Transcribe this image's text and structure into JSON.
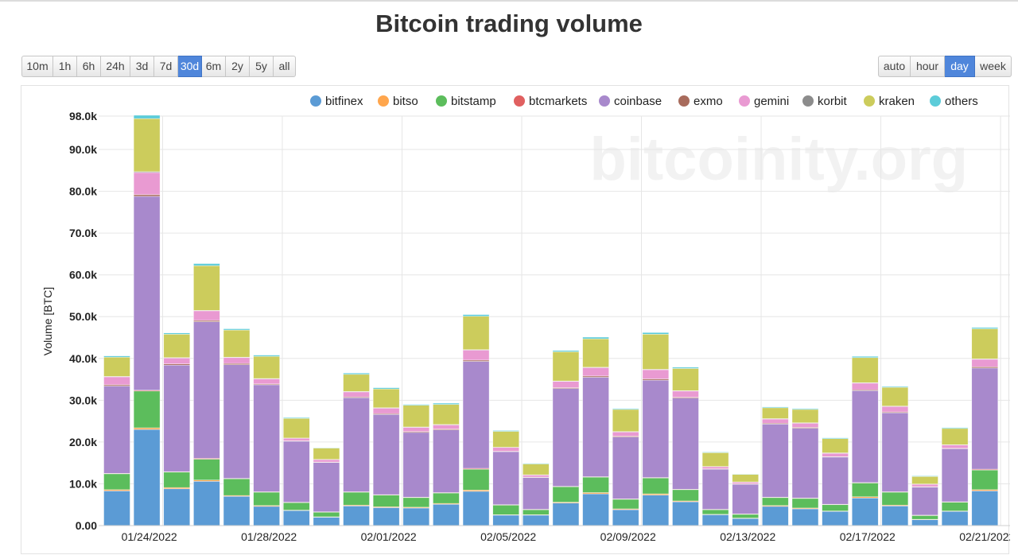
{
  "title": "Bitcoin trading volume",
  "range_buttons": [
    {
      "label": "10m",
      "active": false
    },
    {
      "label": "1h",
      "active": false
    },
    {
      "label": "6h",
      "active": false
    },
    {
      "label": "24h",
      "active": false
    },
    {
      "label": "3d",
      "active": false
    },
    {
      "label": "7d",
      "active": false
    },
    {
      "label": "30d",
      "active": true
    },
    {
      "label": "6m",
      "active": false
    },
    {
      "label": "2y",
      "active": false
    },
    {
      "label": "5y",
      "active": false
    },
    {
      "label": "all",
      "active": false
    }
  ],
  "unit_buttons": [
    {
      "label": "auto",
      "active": false
    },
    {
      "label": "hour",
      "active": false
    },
    {
      "label": "day",
      "active": true
    },
    {
      "label": "week",
      "active": false
    }
  ],
  "watermark": "bitcoinity.org",
  "colors": {
    "accent": "#4f86db",
    "grid": "#e6e6e6"
  },
  "chart_data": {
    "type": "bar",
    "stacked": true,
    "ylabel": "Volume [BTC]",
    "ylim": [
      0,
      98000
    ],
    "y_ticks": [
      {
        "value": 0,
        "label": "0.00"
      },
      {
        "value": 10000,
        "label": "10.0k"
      },
      {
        "value": 20000,
        "label": "20.0k"
      },
      {
        "value": 30000,
        "label": "30.0k"
      },
      {
        "value": 40000,
        "label": "40.0k"
      },
      {
        "value": 50000,
        "label": "50.0k"
      },
      {
        "value": 60000,
        "label": "60.0k"
      },
      {
        "value": 70000,
        "label": "70.0k"
      },
      {
        "value": 80000,
        "label": "80.0k"
      },
      {
        "value": 90000,
        "label": "90.0k"
      },
      {
        "value": 98000,
        "label": "98.0k"
      }
    ],
    "x_tick_labels": [
      {
        "index": 1,
        "label": "01/24/2022"
      },
      {
        "index": 5,
        "label": "01/28/2022"
      },
      {
        "index": 9,
        "label": "02/01/2022"
      },
      {
        "index": 13,
        "label": "02/05/2022"
      },
      {
        "index": 17,
        "label": "02/09/2022"
      },
      {
        "index": 21,
        "label": "02/13/2022"
      },
      {
        "index": 25,
        "label": "02/17/2022"
      },
      {
        "index": 29,
        "label": "02/21/2022"
      }
    ],
    "legend_position": "top",
    "categories": [
      "01/23/2022",
      "01/24/2022",
      "01/25/2022",
      "01/26/2022",
      "01/27/2022",
      "01/28/2022",
      "01/29/2022",
      "01/30/2022",
      "01/31/2022",
      "02/01/2022",
      "02/02/2022",
      "02/03/2022",
      "02/04/2022",
      "02/05/2022",
      "02/06/2022",
      "02/07/2022",
      "02/08/2022",
      "02/09/2022",
      "02/10/2022",
      "02/11/2022",
      "02/12/2022",
      "02/13/2022",
      "02/14/2022",
      "02/15/2022",
      "02/16/2022",
      "02/17/2022",
      "02/18/2022",
      "02/19/2022",
      "02/20/2022",
      "02/21/2022"
    ],
    "series": [
      {
        "name": "bitfinex",
        "color": "#5b9bd5",
        "values": [
          8300,
          23000,
          8800,
          10600,
          7000,
          4600,
          3600,
          2000,
          4700,
          4300,
          4200,
          5100,
          8200,
          2500,
          2500,
          5400,
          7600,
          3800,
          7300,
          5700,
          2600,
          1700,
          4600,
          4000,
          3400,
          6600,
          4700,
          1400,
          3400,
          8300
        ]
      },
      {
        "name": "bitso",
        "color": "#ffa64d",
        "values": [
          300,
          400,
          300,
          300,
          200,
          200,
          100,
          100,
          200,
          200,
          200,
          200,
          300,
          100,
          100,
          200,
          300,
          200,
          300,
          200,
          100,
          100,
          200,
          200,
          100,
          300,
          200,
          100,
          100,
          300
        ]
      },
      {
        "name": "bitstamp",
        "color": "#5cbd5c",
        "values": [
          3800,
          8800,
          3700,
          5000,
          4000,
          3200,
          1800,
          1100,
          3100,
          2800,
          2300,
          2500,
          5000,
          2300,
          1200,
          3700,
          3700,
          2300,
          3800,
          2700,
          1100,
          900,
          1900,
          2300,
          1500,
          3300,
          3100,
          900,
          2100,
          4700
        ]
      },
      {
        "name": "btcmarkets",
        "color": "#e06060",
        "values": [
          100,
          200,
          100,
          200,
          100,
          100,
          100,
          100,
          100,
          100,
          100,
          100,
          200,
          100,
          100,
          100,
          100,
          100,
          100,
          100,
          100,
          100,
          100,
          100,
          100,
          100,
          100,
          100,
          100,
          200
        ]
      },
      {
        "name": "coinbase",
        "color": "#a889cc",
        "values": [
          20900,
          46400,
          25500,
          32700,
          27200,
          25600,
          14600,
          11800,
          22500,
          19200,
          15500,
          15000,
          25600,
          12700,
          7600,
          23400,
          23800,
          14800,
          23300,
          21800,
          9600,
          7100,
          17500,
          16700,
          11300,
          22000,
          18900,
          6700,
          12700,
          24200
        ]
      },
      {
        "name": "exmo",
        "color": "#a86b5c",
        "values": [
          300,
          400,
          300,
          300,
          300,
          200,
          100,
          100,
          200,
          200,
          200,
          200,
          300,
          100,
          100,
          200,
          300,
          200,
          300,
          200,
          100,
          100,
          200,
          200,
          100,
          200,
          200,
          100,
          100,
          300
        ]
      },
      {
        "name": "gemini",
        "color": "#e99ad2",
        "values": [
          1900,
          5300,
          1400,
          2300,
          1400,
          1200,
          600,
          600,
          1200,
          1300,
          1000,
          1000,
          2400,
          900,
          500,
          1500,
          2000,
          1000,
          2200,
          1500,
          500,
          400,
          1000,
          1000,
          800,
          1600,
          1300,
          600,
          800,
          1800
        ]
      },
      {
        "name": "korbit",
        "color": "#8c8c8c",
        "values": [
          100,
          200,
          100,
          100,
          100,
          100,
          50,
          50,
          100,
          100,
          100,
          100,
          100,
          50,
          50,
          100,
          100,
          100,
          100,
          100,
          50,
          50,
          100,
          100,
          100,
          100,
          100,
          50,
          50,
          100
        ]
      },
      {
        "name": "kraken",
        "color": "#cccc5c",
        "values": [
          4600,
          12700,
          5600,
          10700,
          6500,
          5300,
          4700,
          2700,
          4100,
          4500,
          5200,
          4800,
          8000,
          3800,
          2600,
          7000,
          6800,
          5300,
          8400,
          5300,
          3300,
          1800,
          2600,
          3200,
          3400,
          6000,
          4500,
          1800,
          3900,
          7200
        ]
      },
      {
        "name": "others",
        "color": "#5cccd9",
        "values": [
          300,
          800,
          300,
          500,
          300,
          300,
          200,
          100,
          300,
          300,
          200,
          300,
          400,
          200,
          150,
          300,
          400,
          200,
          400,
          300,
          150,
          100,
          200,
          200,
          200,
          300,
          200,
          150,
          200,
          300
        ]
      }
    ]
  }
}
